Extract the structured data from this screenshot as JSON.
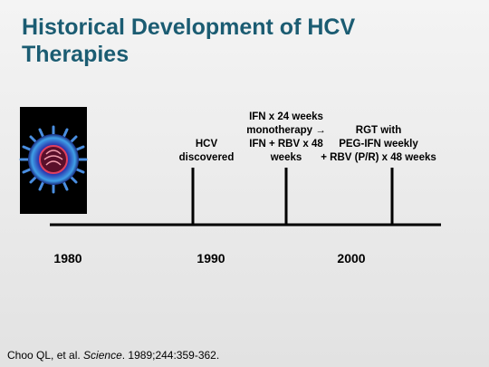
{
  "header": {
    "title_lines": [
      "Historical Development of HCV",
      "Therapies"
    ]
  },
  "timeline": {
    "events": [
      {
        "lines": [
          "HCV",
          "discovered"
        ]
      },
      {
        "lines": [
          "IFN x 24 weeks",
          "monotherapy →",
          "IFN + RBV x 48",
          "weeks"
        ]
      },
      {
        "lines": [
          "RGT with",
          "PEG-IFN weekly",
          "+ RBV  (P/R) x 48 weeks"
        ]
      }
    ],
    "years": [
      "1980",
      "1990",
      "2000"
    ]
  },
  "citation": {
    "authors": "Choo QL, et al. ",
    "journal": "Science",
    "details": ". 1989;244:359-362."
  }
}
